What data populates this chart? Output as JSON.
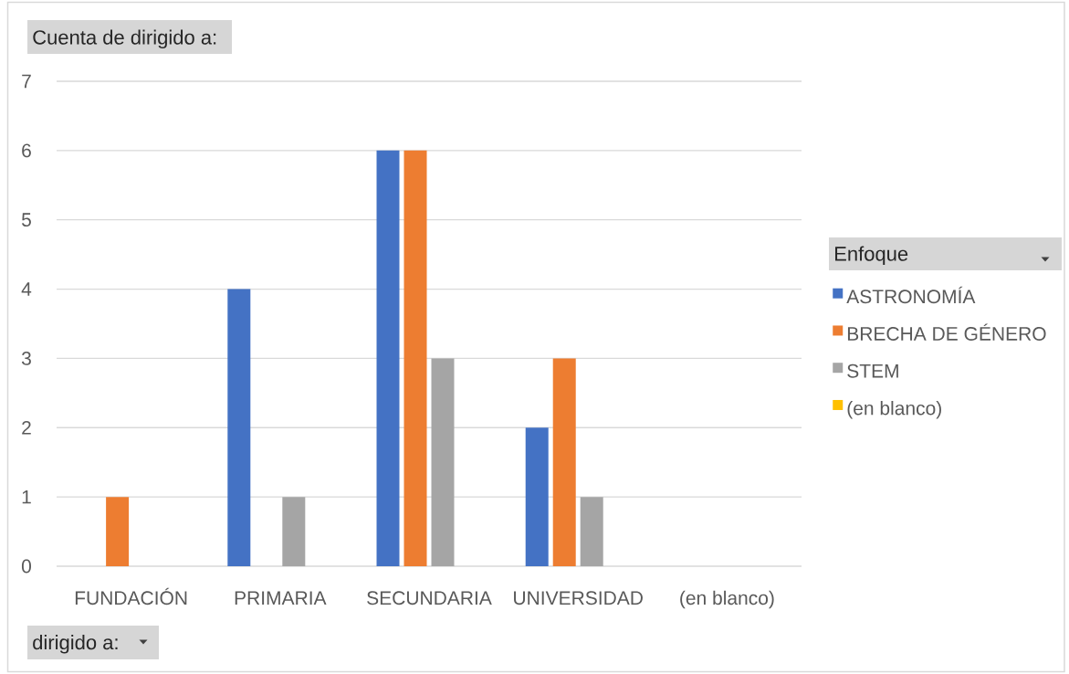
{
  "chart_data": {
    "type": "bar",
    "ylabel": "Cuenta de dirigido a:",
    "xlabel": "dirigido a:",
    "legend_title": "Enfoque",
    "categories": [
      "FUNDACIÓN",
      "PRIMARIA",
      "SECUNDARIA",
      "UNIVERSIDAD",
      "(en blanco)"
    ],
    "series": [
      {
        "name": "ASTRONOMÍA",
        "color": "#4472c4",
        "values": [
          null,
          4,
          6,
          2,
          null
        ]
      },
      {
        "name": "BRECHA DE GÉNERO",
        "color": "#ed7d31",
        "values": [
          1,
          null,
          6,
          3,
          null
        ]
      },
      {
        "name": "STEM",
        "color": "#a5a5a5",
        "values": [
          null,
          1,
          3,
          1,
          null
        ]
      },
      {
        "name": "(en blanco)",
        "color": "#ffc000",
        "values": [
          null,
          null,
          null,
          null,
          null
        ]
      }
    ],
    "ylim": [
      0,
      7
    ],
    "yticks": [
      0,
      1,
      2,
      3,
      4,
      5,
      6,
      7
    ],
    "grid": "y",
    "legend": "right"
  }
}
